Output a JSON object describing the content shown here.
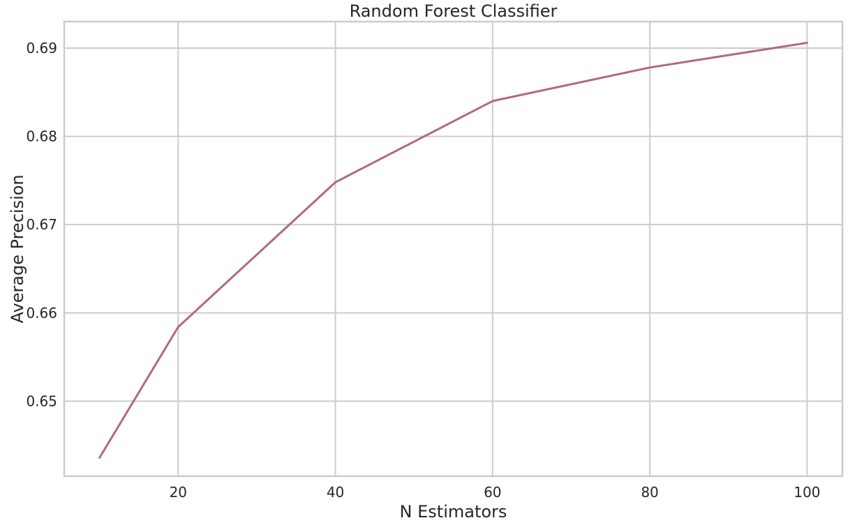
{
  "chart_data": {
    "type": "line",
    "title": "Random Forest Classifier",
    "xlabel": "N Estimators",
    "ylabel": "Average Precision",
    "x": [
      10,
      20,
      40,
      60,
      80,
      100
    ],
    "series": [
      {
        "values": [
          0.6436,
          0.6584,
          0.6748,
          0.684,
          0.6878,
          0.6906
        ],
        "color": "#b06b76"
      }
    ],
    "xlim": [
      5.5,
      104.5
    ],
    "ylim": [
      0.6415,
      0.693
    ],
    "xticks": [
      20,
      40,
      60,
      80,
      100
    ],
    "xtick_labels": [
      "20",
      "40",
      "60",
      "80",
      "100"
    ],
    "yticks": [
      0.65,
      0.66,
      0.67,
      0.68,
      0.69
    ],
    "ytick_labels": [
      "0.65",
      "0.66",
      "0.67",
      "0.68",
      "0.69"
    ],
    "grid": true
  },
  "style": {
    "grid_color": "#cccccc",
    "spine_color": "#cccccc",
    "text_color": "#262626",
    "background": "#ffffff"
  }
}
